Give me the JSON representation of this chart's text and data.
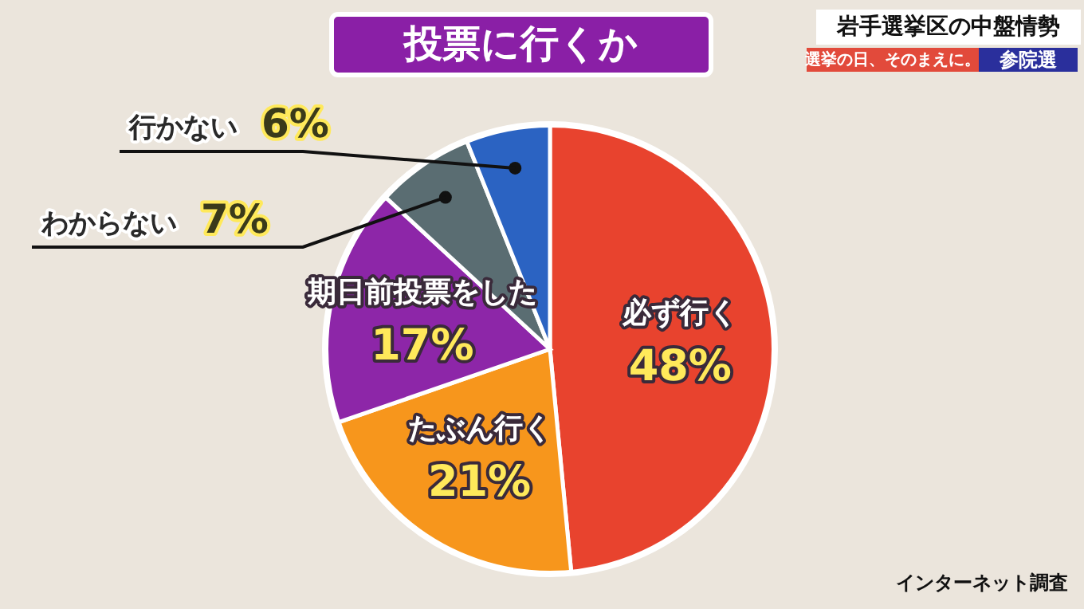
{
  "chart_data": {
    "type": "pie",
    "title": "投票に行くか",
    "subtitle": "岩手選挙区の中盤情勢",
    "categories": [
      "必ず行く",
      "たぶん行く",
      "期日前投票をした",
      "わからない",
      "行かない"
    ],
    "values": [
      48,
      21,
      17,
      7,
      6
    ],
    "value_labels": [
      "48%",
      "21%",
      "17%",
      "7%",
      "6%"
    ],
    "colors": [
      "#e8432e",
      "#f7961c",
      "#8d26a8",
      "#5a6d72",
      "#2b63c2"
    ],
    "annotations": [
      "選挙の日、そのまえに。",
      "参院選",
      "インターネット調査"
    ]
  }
}
